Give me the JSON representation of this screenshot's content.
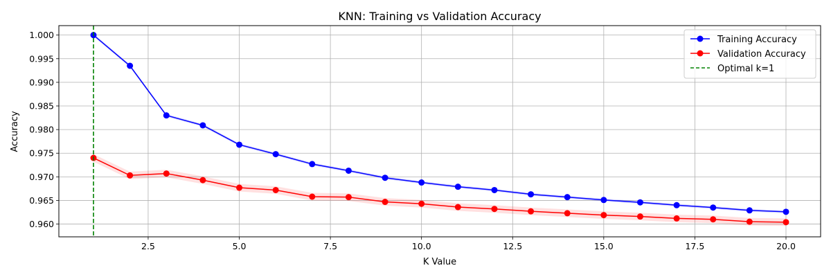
{
  "chart_data": {
    "type": "line",
    "title": "KNN: Training vs Validation Accuracy",
    "xlabel": "K Value",
    "ylabel": "Accuracy",
    "xlim": [
      0.05,
      20.95
    ],
    "ylim": [
      0.9573,
      1.002
    ],
    "xticks": [
      2.5,
      5.0,
      7.5,
      10.0,
      12.5,
      15.0,
      17.5,
      20.0
    ],
    "xtick_labels": [
      "2.5",
      "5.0",
      "7.5",
      "10.0",
      "12.5",
      "15.0",
      "17.5",
      "20.0"
    ],
    "yticks": [
      0.96,
      0.965,
      0.97,
      0.975,
      0.98,
      0.985,
      0.99,
      0.995,
      1.0
    ],
    "ytick_labels": [
      "0.960",
      "0.965",
      "0.970",
      "0.975",
      "0.980",
      "0.985",
      "0.990",
      "0.995",
      "1.000"
    ],
    "grid": true,
    "legend_position": "top-right",
    "x": [
      1,
      2,
      3,
      4,
      5,
      6,
      7,
      8,
      9,
      10,
      11,
      12,
      13,
      14,
      15,
      16,
      17,
      18,
      19,
      20
    ],
    "series": [
      {
        "name": "Training Accuracy",
        "color": "#0000ff",
        "values": [
          1.0,
          0.9935,
          0.983,
          0.9809,
          0.9768,
          0.9748,
          0.9727,
          0.9713,
          0.9698,
          0.9688,
          0.9679,
          0.9672,
          0.9663,
          0.9657,
          0.9651,
          0.9646,
          0.964,
          0.9635,
          0.9629,
          0.9626
        ],
        "band": 0.0003
      },
      {
        "name": "Validation Accuracy",
        "color": "#ff0000",
        "values": [
          0.974,
          0.9703,
          0.9707,
          0.9693,
          0.9677,
          0.9672,
          0.9658,
          0.9657,
          0.9647,
          0.9643,
          0.9636,
          0.9632,
          0.9627,
          0.9623,
          0.9619,
          0.9616,
          0.9612,
          0.961,
          0.9605,
          0.9604
        ],
        "band": 0.0008
      }
    ],
    "vline": {
      "name": "Optimal k=1",
      "x": 1,
      "color": "#008000"
    }
  }
}
